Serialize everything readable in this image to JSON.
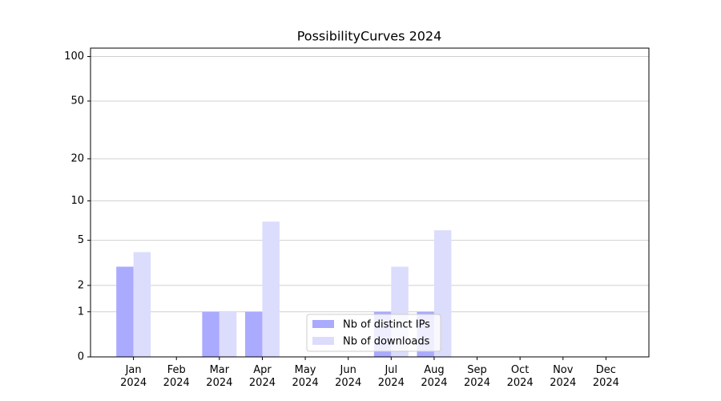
{
  "chart_data": {
    "type": "bar",
    "title": "PossibilityCurves 2024",
    "categories": [
      "Jan 2024",
      "Feb 2024",
      "Mar 2024",
      "Apr 2024",
      "May 2024",
      "Jun 2024",
      "Jul 2024",
      "Aug 2024",
      "Sep 2024",
      "Oct 2024",
      "Nov 2024",
      "Dec 2024"
    ],
    "series": [
      {
        "name": "Nb of distinct IPs",
        "color": "#aaaaff",
        "values": [
          3,
          0,
          1,
          1,
          0,
          0,
          1,
          1,
          0,
          0,
          0,
          0
        ]
      },
      {
        "name": "Nb of downloads",
        "color": "#dcdcfc",
        "values": [
          4,
          0,
          1,
          7,
          0,
          0,
          3,
          6,
          0,
          0,
          0,
          0
        ]
      }
    ],
    "yscale": "log1p",
    "ylim": [
      0,
      114
    ],
    "yticks": [
      0,
      1,
      2,
      5,
      10,
      20,
      50,
      100
    ],
    "grid": true,
    "legend": "lower center"
  }
}
